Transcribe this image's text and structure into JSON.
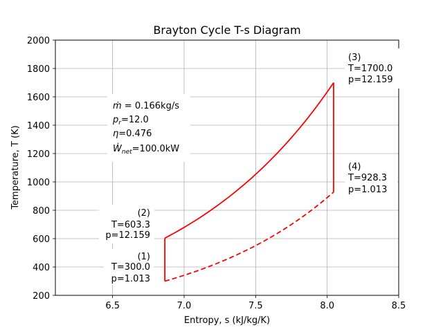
{
  "chart_data": {
    "type": "line",
    "title": "Brayton Cycle T-s Diagram",
    "xlabel": "Entropy, s (kJ/kg/K)",
    "ylabel": "Temperature, T (K)",
    "xlim": [
      6.1,
      8.5
    ],
    "ylim": [
      200,
      2000
    ],
    "xticks": [
      6.5,
      7.0,
      7.5,
      8.0,
      8.5
    ],
    "xtick_labels": [
      "6.5",
      "7.0",
      "7.5",
      "8.0",
      "8.5"
    ],
    "yticks": [
      200,
      400,
      600,
      800,
      1000,
      1200,
      1400,
      1600,
      1800,
      2000
    ],
    "ytick_labels": [
      "200",
      "400",
      "600",
      "800",
      "1000",
      "1200",
      "1400",
      "1600",
      "1800",
      "2000"
    ],
    "grid": true,
    "color": "#ff0000",
    "states": [
      {
        "id": "1",
        "s": 6.865,
        "T": 300.0,
        "p": 1.013,
        "label_lines": [
          "(1)",
          "T=300.0",
          "p=1.013"
        ]
      },
      {
        "id": "2",
        "s": 6.865,
        "T": 603.3,
        "p": 12.159,
        "label_lines": [
          "(2)",
          "T=603.3",
          "p=12.159"
        ]
      },
      {
        "id": "3",
        "s": 8.045,
        "T": 1700.0,
        "p": 12.159,
        "label_lines": [
          "(3)",
          "T=1700.0",
          "p=12.159"
        ]
      },
      {
        "id": "4",
        "s": 8.045,
        "T": 928.3,
        "p": 1.013,
        "label_lines": [
          "(4)",
          "T=928.3",
          "p=1.013"
        ]
      }
    ],
    "series": [
      {
        "segment": "1-2",
        "style": "solid"
      },
      {
        "segment": "2-3",
        "style": "solid"
      },
      {
        "segment": "3-4",
        "style": "solid"
      },
      {
        "segment": "4-1",
        "style": "dashed"
      }
    ],
    "info_box": {
      "mdot": "0.166kg/s",
      "pr": "12.0",
      "eta": "0.476",
      "wnet": "100.0kW"
    }
  }
}
